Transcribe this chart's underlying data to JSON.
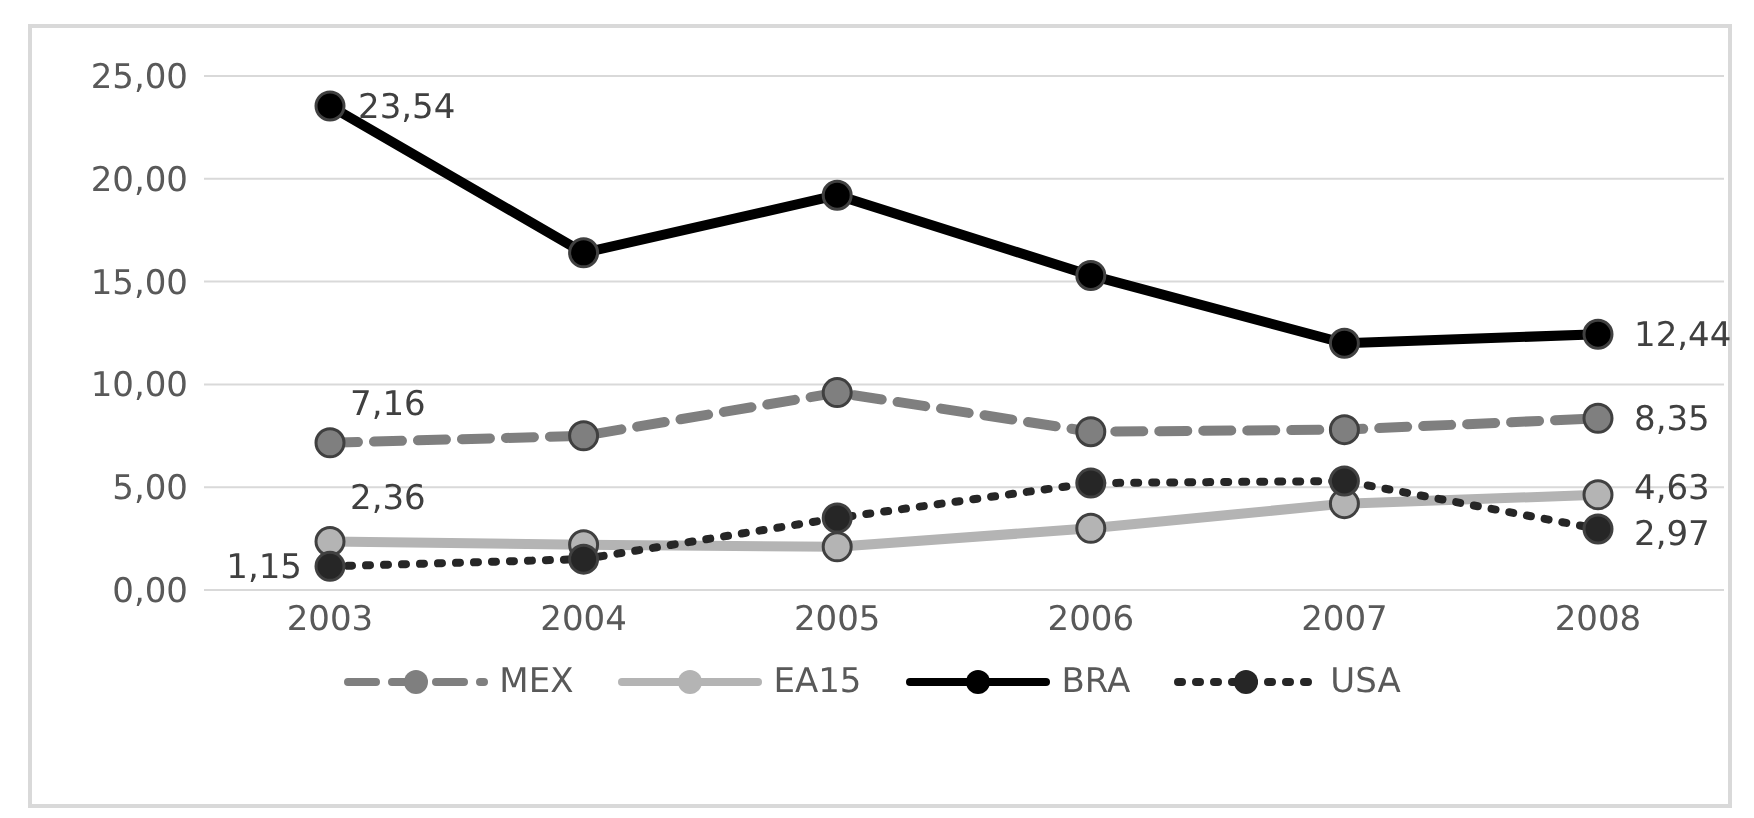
{
  "chart_data": {
    "type": "line",
    "categories": [
      "2003",
      "2004",
      "2005",
      "2006",
      "2007",
      "2008"
    ],
    "series": [
      {
        "name": "MEX",
        "color": "#7f7f7f",
        "line_style": "dashed",
        "values": [
          7.16,
          7.5,
          9.6,
          7.7,
          7.8,
          8.35
        ],
        "value_labels": [
          "7,16",
          null,
          null,
          null,
          null,
          "8,35"
        ]
      },
      {
        "name": "EA15",
        "color": "#b4b4b4",
        "line_style": "solid",
        "values": [
          2.36,
          2.2,
          2.1,
          3.0,
          4.2,
          4.63
        ],
        "value_labels": [
          "2,36",
          null,
          null,
          null,
          null,
          "4,63"
        ]
      },
      {
        "name": "BRA",
        "color": "#000000",
        "line_style": "solid",
        "values": [
          23.54,
          16.4,
          19.2,
          15.3,
          12.0,
          12.44
        ],
        "value_labels": [
          "23,54",
          null,
          null,
          null,
          null,
          "12,44"
        ]
      },
      {
        "name": "USA",
        "color": "#262626",
        "line_style": "dotted",
        "values": [
          1.15,
          1.5,
          3.5,
          5.2,
          5.3,
          2.97
        ],
        "value_labels": [
          "1,15",
          null,
          null,
          null,
          null,
          "2,97"
        ]
      }
    ],
    "ylim": [
      0,
      25
    ],
    "yticks": [
      {
        "value": 0,
        "label": "0,00"
      },
      {
        "value": 5,
        "label": "5,00"
      },
      {
        "value": 10,
        "label": "10,00"
      },
      {
        "value": 15,
        "label": "15,00"
      },
      {
        "value": 20,
        "label": "20,00"
      },
      {
        "value": 25,
        "label": "25,00"
      }
    ],
    "grid": "y",
    "legend": "bottom",
    "marker": "circle"
  }
}
